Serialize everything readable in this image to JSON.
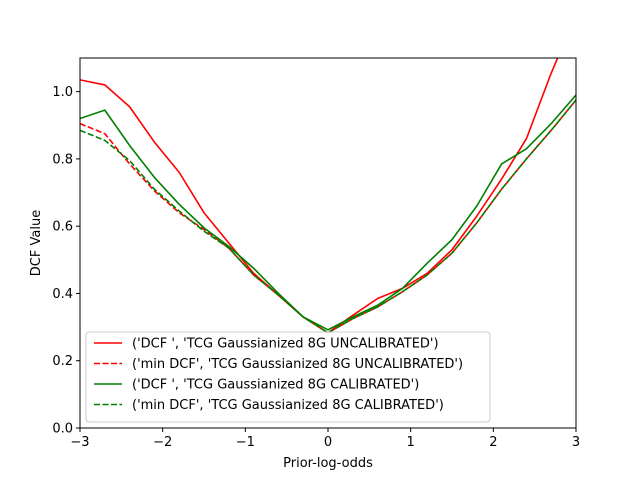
{
  "chart_data": {
    "type": "line",
    "title": "",
    "xlabel": "Prior-log-odds",
    "ylabel": "DCF Value",
    "xlim": [
      -3,
      3
    ],
    "ylim": [
      0.0,
      1.1
    ],
    "xticks": [
      -3,
      -2,
      -1,
      0,
      1,
      2,
      3
    ],
    "xtick_labels": [
      "−3",
      "−2",
      "−1",
      "0",
      "1",
      "2",
      "3"
    ],
    "yticks": [
      0.0,
      0.2,
      0.4,
      0.6,
      0.8,
      1.0
    ],
    "ytick_labels": [
      "0.0",
      "0.2",
      "0.4",
      "0.6",
      "0.8",
      "1.0"
    ],
    "grid": false,
    "legend_position": "lower-left",
    "x": [
      -3.0,
      -2.7,
      -2.4,
      -2.1,
      -1.8,
      -1.5,
      -1.2,
      -0.9,
      -0.6,
      -0.3,
      0.0,
      0.3,
      0.6,
      0.9,
      1.2,
      1.5,
      1.8,
      2.1,
      2.4,
      2.7,
      3.0
    ],
    "series": [
      {
        "name": "('DCF ', 'TCG Gaussianized 8G UNCALIBRATED')",
        "color": "#ff0000",
        "linestyle": "solid",
        "values": [
          1.035,
          1.02,
          0.955,
          0.85,
          0.76,
          0.64,
          0.55,
          0.46,
          0.395,
          0.33,
          0.283,
          0.335,
          0.385,
          0.415,
          0.46,
          0.53,
          0.63,
          0.74,
          0.86,
          1.055,
          1.23
        ]
      },
      {
        "name": "('min DCF', 'TCG Gaussianized 8G UNCALIBRATED')",
        "color": "#ff0000",
        "linestyle": "dashed",
        "values": [
          0.905,
          0.875,
          0.785,
          0.705,
          0.64,
          0.59,
          0.535,
          0.455,
          0.395,
          0.33,
          0.283,
          0.325,
          0.36,
          0.405,
          0.455,
          0.52,
          0.61,
          0.71,
          0.8,
          0.885,
          0.975
        ]
      },
      {
        "name": "('DCF ', 'TCG Gaussianized 8G CALIBRATED')",
        "color": "#008000",
        "linestyle": "solid",
        "values": [
          0.92,
          0.945,
          0.84,
          0.745,
          0.665,
          0.595,
          0.54,
          0.475,
          0.4,
          0.33,
          0.292,
          0.33,
          0.365,
          0.415,
          0.49,
          0.56,
          0.66,
          0.785,
          0.83,
          0.905,
          0.99
        ]
      },
      {
        "name": "('min DCF', 'TCG Gaussianized 8G CALIBRATED')",
        "color": "#008000",
        "linestyle": "dashed",
        "values": [
          0.885,
          0.855,
          0.795,
          0.71,
          0.645,
          0.585,
          0.535,
          0.455,
          0.395,
          0.33,
          0.283,
          0.325,
          0.36,
          0.405,
          0.455,
          0.52,
          0.61,
          0.71,
          0.8,
          0.885,
          0.975
        ]
      }
    ]
  }
}
